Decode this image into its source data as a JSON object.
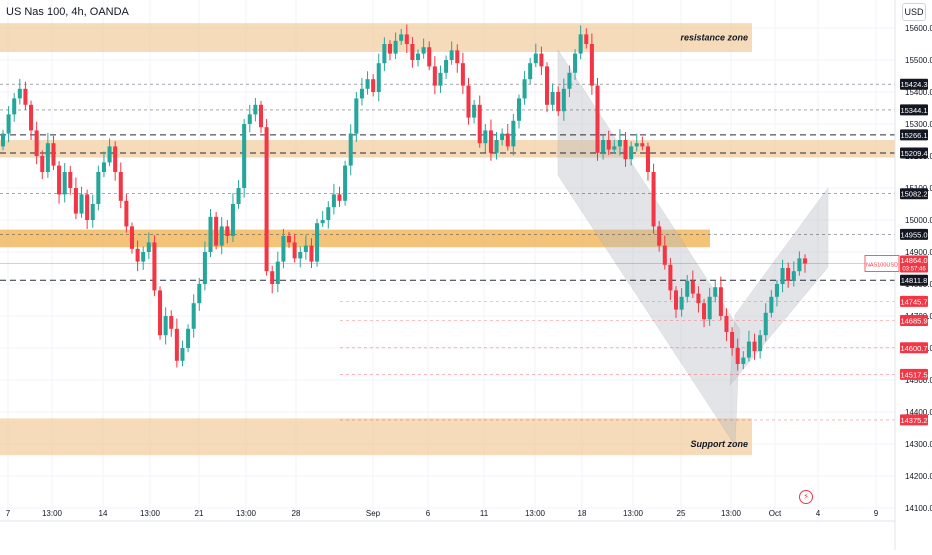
{
  "header": {
    "symbol_title": "US Nas 100, 4h, OANDA",
    "currency": "USD"
  },
  "chart_data": {
    "type": "candlestick",
    "title": "US Nas 100, 4h, OANDA",
    "ylim": [
      14050,
      15700
    ],
    "y_ticks": [
      14100.0,
      14200.0,
      14300.0,
      14400.0,
      14500.0,
      14600.0,
      14700.0,
      14800.0,
      14900.0,
      15000.0,
      15100.0,
      15200.0,
      15300.0,
      15400.0,
      15500.0,
      15600.0
    ],
    "x_ticks": [
      "7",
      "13:00",
      "14",
      "13:00",
      "21",
      "13:00",
      "28",
      "Sep",
      "6",
      "11",
      "13:00",
      "18",
      "13:00",
      "25",
      "13:00",
      "Oct",
      "4",
      "9"
    ],
    "zones": [
      {
        "label": "resistance zone",
        "from": 15525,
        "to": 15615
      },
      {
        "label": "",
        "from": 15195,
        "to": 15250
      },
      {
        "label": "",
        "from": 14915,
        "to": 14970
      },
      {
        "label": "Support zone",
        "from": 14265,
        "to": 14380
      }
    ],
    "price_levels": [
      {
        "value": 15424.3,
        "style": "dashed-black"
      },
      {
        "value": 15344.1,
        "style": "dashed-black"
      },
      {
        "value": 15266.1,
        "style": "dashed-black"
      },
      {
        "value": 15209.4,
        "style": "dashed-black"
      },
      {
        "value": 15082.2,
        "style": "dashed-black"
      },
      {
        "value": 14955.0,
        "style": "dashed-black"
      },
      {
        "value": 14811.8,
        "style": "dashed-black"
      },
      {
        "value": 14745.7,
        "style": "dashed-red"
      },
      {
        "value": 14685.9,
        "style": "dashed-red"
      },
      {
        "value": 14600.7,
        "style": "dashed-red"
      },
      {
        "value": 14517.5,
        "style": "dashed-red"
      },
      {
        "value": 14375.2,
        "style": "dashed-red"
      }
    ],
    "current_price": {
      "symbol": "NAS100USD",
      "value": 14864.0,
      "countdown": "03:57:46"
    },
    "colors": {
      "up": "#26a69a",
      "down": "#f23645",
      "zone": "#f0c895",
      "zone_strong": "#f0b862",
      "channel": "#b2b5be"
    },
    "series": [
      {
        "name": "NAS100USD",
        "close": [
          15270,
          15330,
          15380,
          15410,
          15360,
          15280,
          15200,
          15150,
          15240,
          15170,
          15080,
          15150,
          15100,
          15020,
          15080,
          15000,
          15050,
          15150,
          15180,
          15230,
          15150,
          15060,
          14980,
          14910,
          14870,
          14900,
          14930,
          14780,
          14640,
          14700,
          14660,
          14560,
          14600,
          14660,
          14740,
          14800,
          14900,
          15010,
          14920,
          14980,
          14950,
          15050,
          15100,
          15300,
          15330,
          15360,
          15290,
          14840,
          14800,
          14870,
          14950,
          14930,
          14880,
          14900,
          14920,
          14870,
          14990,
          15000,
          15040,
          15080,
          15060,
          15170,
          15270,
          15380,
          15410,
          15440,
          15400,
          15490,
          15550,
          15520,
          15560,
          15580,
          15550,
          15500,
          15520,
          15540,
          15480,
          15420,
          15460,
          15500,
          15530,
          15490,
          15420,
          15320,
          15360,
          15240,
          15280,
          15210,
          15250,
          15270,
          15230,
          15310,
          15380,
          15440,
          15490,
          15520,
          15480,
          15360,
          15400,
          15340,
          15410,
          15460,
          15520,
          15580,
          15550,
          15420,
          15210,
          15250,
          15220,
          15230,
          15250,
          15190,
          15230,
          15240,
          15230,
          15150,
          14980,
          14920,
          14860,
          14780,
          14720,
          14760,
          14810,
          14770,
          14740,
          14690,
          14760,
          14790,
          14700,
          14650,
          14600,
          14550,
          14570,
          14620,
          14590,
          14640,
          14710,
          14760,
          14800,
          14850,
          14810,
          14840,
          14880,
          14864
        ]
      }
    ]
  }
}
